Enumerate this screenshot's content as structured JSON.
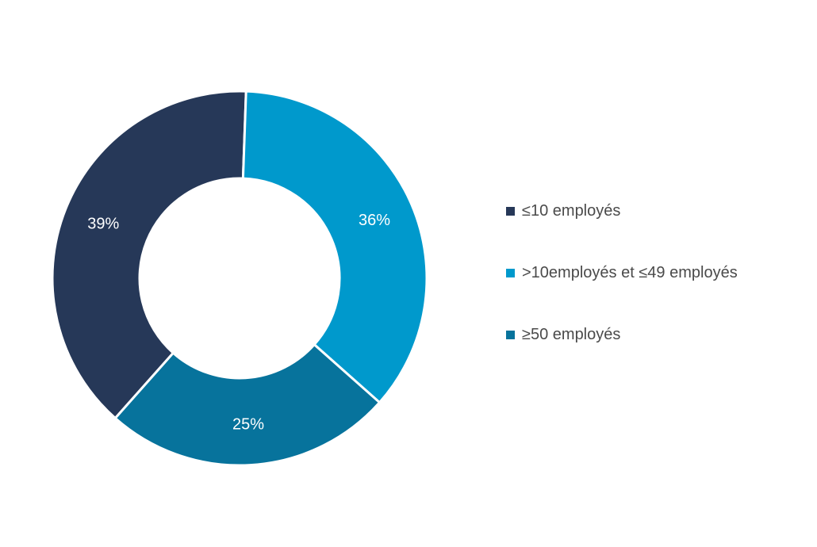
{
  "chart_data": {
    "type": "pie",
    "donut": true,
    "title": "",
    "legend_position": "right",
    "slices": [
      {
        "name": "≤10 employés",
        "value": 39,
        "label": "39%",
        "color": "#263858"
      },
      {
        "name": ">10employés et ≤49 employés",
        "value": 36,
        "label": "36%",
        "color": "#0099cc"
      },
      {
        "name": "≥50 employés",
        "value": 25,
        "label": "25%",
        "color": "#07739c"
      }
    ]
  }
}
